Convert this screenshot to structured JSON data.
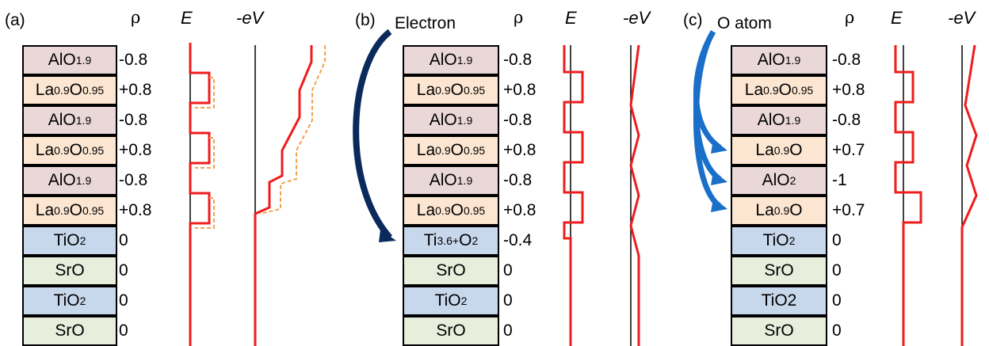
{
  "colors": {
    "AlO": "#ead8d8",
    "LaO": "#fce6d2",
    "TiO": "#c7d7ec",
    "SrO": "#e7eedb",
    "field_line": "#ef1c1c",
    "reference_dash": "#f0a050",
    "electron_arrow": "#0a2a5c",
    "oatom_arrow": "#1a6fc8"
  },
  "headers": {
    "rho": "ρ",
    "E": "E",
    "eV": "-eV"
  },
  "panels": [
    {
      "label": "(a)",
      "layers": [
        {
          "base": "AlO",
          "sub": "1.9",
          "rho": "-0.8",
          "fill": "AlO"
        },
        {
          "base": "La",
          "sub": "0.9",
          "base2": "O",
          "sub2": "0.95",
          "rho": "+0.8",
          "fill": "LaO"
        },
        {
          "base": "AlO",
          "sub": "1.9",
          "rho": "-0.8",
          "fill": "AlO"
        },
        {
          "base": "La",
          "sub": "0.9",
          "base2": "O",
          "sub2": "0.95",
          "rho": "+0.8",
          "fill": "LaO"
        },
        {
          "base": "AlO",
          "sub": "1.9",
          "rho": "-0.8",
          "fill": "AlO"
        },
        {
          "base": "La",
          "sub": "0.9",
          "base2": "O",
          "sub2": "0.95",
          "rho": "+0.8",
          "fill": "LaO"
        },
        {
          "base": "TiO",
          "sub": "2",
          "rho": "0",
          "fill": "TiO"
        },
        {
          "base": "SrO",
          "rho": "0",
          "fill": "SrO"
        },
        {
          "base": "TiO",
          "sub": "2",
          "rho": "0",
          "fill": "TiO"
        },
        {
          "base": "SrO",
          "rho": "0",
          "fill": "SrO"
        }
      ]
    },
    {
      "label": "(b)",
      "annotation": "Electron",
      "layers": [
        {
          "base": "AlO",
          "sub": "1.9",
          "rho": "-0.8",
          "fill": "AlO"
        },
        {
          "base": "La",
          "sub": "0.9",
          "base2": "O",
          "sub2": "0.95",
          "rho": "+0.8",
          "fill": "LaO"
        },
        {
          "base": "AlO",
          "sub": "1.9",
          "rho": "-0.8",
          "fill": "AlO"
        },
        {
          "base": "La",
          "sub": "0.9",
          "base2": "O",
          "sub2": "0.95",
          "rho": "+0.8",
          "fill": "LaO"
        },
        {
          "base": "AlO",
          "sub": "1.9",
          "rho": "-0.8",
          "fill": "AlO"
        },
        {
          "base": "La",
          "sub": "0.9",
          "base2": "O",
          "sub2": "0.95",
          "rho": "+0.8",
          "fill": "LaO"
        },
        {
          "base": "Ti",
          "sup": "3.6+",
          "base2": "O",
          "sub2": "2",
          "rho": "-0.4",
          "fill": "TiO"
        },
        {
          "base": "SrO",
          "rho": "0",
          "fill": "SrO"
        },
        {
          "base": "TiO",
          "sub": "2",
          "rho": "0",
          "fill": "TiO"
        },
        {
          "base": "SrO",
          "rho": "0",
          "fill": "SrO"
        }
      ]
    },
    {
      "label": "(c)",
      "annotation": "O atom",
      "layers": [
        {
          "base": "AlO",
          "sub": "1.9",
          "rho": "-0.8",
          "fill": "AlO"
        },
        {
          "base": "La",
          "sub": "0.9",
          "base2": "O",
          "sub2": "0.95",
          "rho": "+0.8",
          "fill": "LaO"
        },
        {
          "base": "AlO",
          "sub": "1.9",
          "rho": "-0.8",
          "fill": "AlO"
        },
        {
          "base": "La",
          "sub": "0.9",
          "base2": "O",
          "rho": "+0.7",
          "fill": "LaO"
        },
        {
          "base": "AlO",
          "sub": "2",
          "rho": "-1",
          "fill": "AlO"
        },
        {
          "base": "La",
          "sub": "0.9",
          "base2": "O",
          "rho": "+0.7",
          "fill": "LaO"
        },
        {
          "base": "TiO",
          "sub": "2",
          "rho": "0",
          "fill": "TiO"
        },
        {
          "base": "SrO",
          "rho": "0",
          "fill": "SrO"
        },
        {
          "base": "TiO2",
          "rho": "0",
          "fill": "TiO"
        },
        {
          "base": "SrO",
          "rho": "0",
          "fill": "SrO"
        }
      ]
    }
  ]
}
